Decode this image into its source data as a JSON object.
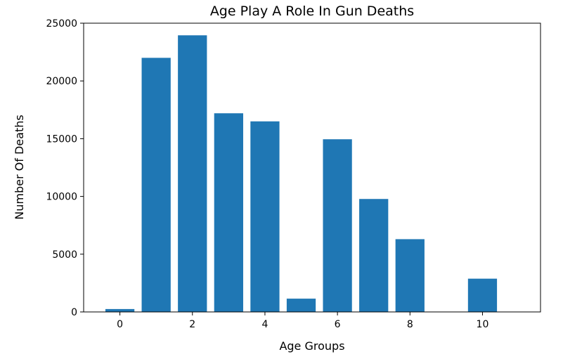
{
  "chart_data": {
    "type": "bar",
    "title": "Age Play A Role In Gun Deaths",
    "xlabel": "Age Groups",
    "ylabel": "Number Of Deaths",
    "categories": [
      0,
      1,
      2,
      3,
      4,
      5,
      6,
      7,
      8,
      9,
      10
    ],
    "values": [
      250,
      22000,
      23950,
      17200,
      16500,
      1150,
      14950,
      9780,
      6300,
      0,
      2880
    ],
    "xlim": [
      -1,
      11.6
    ],
    "ylim": [
      0,
      25000
    ],
    "xticks": [
      "0",
      "2",
      "4",
      "6",
      "8",
      "10"
    ],
    "yticks": [
      "0",
      "5000",
      "10000",
      "15000",
      "20000",
      "25000"
    ],
    "bar_color": "#1f77b4",
    "grid": false,
    "legend": "none"
  }
}
